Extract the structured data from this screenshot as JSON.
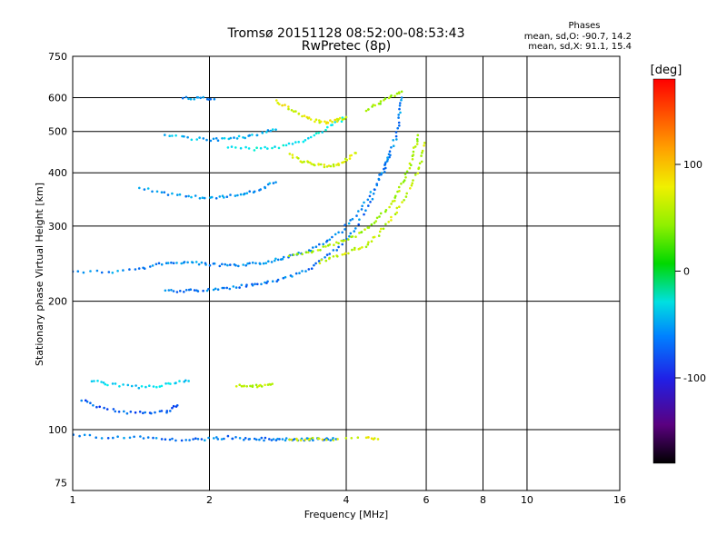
{
  "chart_data": {
    "type": "scatter",
    "title": "Tromsø 20151128 08:52:00-08:53:43",
    "subtitle": "RwPretec (8p)",
    "xlabel": "Frequency [MHz]",
    "ylabel": "Stationary phase Virtual Height [km]",
    "x_scale": "log",
    "y_scale": "log",
    "xlim": [
      1,
      16
    ],
    "ylim": [
      72,
      750
    ],
    "x_ticks": [
      1,
      2,
      4,
      6,
      8,
      10,
      16
    ],
    "y_ticks": [
      75,
      100,
      200,
      300,
      400,
      500,
      600,
      750
    ],
    "grid": true,
    "stats": {
      "heading": "Phases",
      "line_o": "mean, sd,O: -90.7, 14.2",
      "line_x": "mean, sd,X:  91.1, 15.4"
    },
    "colorbar": {
      "label": "[deg]",
      "range": [
        -180,
        180
      ],
      "ticks": [
        100,
        0,
        -100
      ]
    },
    "traces": [
      {
        "phase": -95,
        "points": [
          [
            1.0,
            235
          ],
          [
            1.2,
            234
          ],
          [
            1.4,
            238
          ],
          [
            1.55,
            244
          ],
          [
            1.7,
            247
          ],
          [
            1.85,
            246
          ],
          [
            2.0,
            244
          ],
          [
            2.2,
            242
          ],
          [
            2.4,
            243
          ],
          [
            2.6,
            246
          ],
          [
            2.8,
            250
          ],
          [
            3.0,
            255
          ],
          [
            3.3,
            262
          ],
          [
            3.6,
            274
          ],
          [
            3.9,
            292
          ],
          [
            4.2,
            318
          ],
          [
            4.5,
            352
          ],
          [
            4.8,
            402
          ],
          [
            5.0,
            442
          ],
          [
            5.15,
            490
          ],
          [
            5.25,
            545
          ],
          [
            5.3,
            600
          ]
        ]
      },
      {
        "phase": -100,
        "points": [
          [
            1.6,
            212
          ],
          [
            1.75,
            211
          ],
          [
            1.9,
            212
          ],
          [
            2.1,
            214
          ],
          [
            2.3,
            216
          ],
          [
            2.5,
            218
          ],
          [
            2.7,
            222
          ],
          [
            3.0,
            228
          ],
          [
            3.3,
            238
          ],
          [
            3.6,
            252
          ],
          [
            3.9,
            272
          ],
          [
            4.2,
            298
          ],
          [
            4.5,
            340
          ],
          [
            4.8,
            395
          ],
          [
            5.0,
            440
          ]
        ]
      },
      {
        "phase": 75,
        "points": [
          [
            3.0,
            255
          ],
          [
            3.3,
            260
          ],
          [
            3.6,
            268
          ],
          [
            3.9,
            276
          ],
          [
            4.2,
            285
          ],
          [
            4.5,
            298
          ],
          [
            4.8,
            320
          ],
          [
            5.1,
            345
          ],
          [
            5.3,
            375
          ],
          [
            5.5,
            410
          ],
          [
            5.65,
            450
          ],
          [
            5.75,
            490
          ]
        ]
      },
      {
        "phase": 85,
        "points": [
          [
            3.5,
            247
          ],
          [
            3.8,
            254
          ],
          [
            4.1,
            262
          ],
          [
            4.4,
            270
          ],
          [
            4.7,
            286
          ],
          [
            5.0,
            310
          ],
          [
            5.3,
            340
          ],
          [
            5.6,
            380
          ],
          [
            5.85,
            420
          ],
          [
            5.95,
            470
          ]
        ]
      },
      {
        "phase": -90,
        "points": [
          [
            1.4,
            370
          ],
          [
            1.6,
            358
          ],
          [
            1.8,
            352
          ],
          [
            2.0,
            350
          ],
          [
            2.2,
            352
          ],
          [
            2.4,
            358
          ],
          [
            2.6,
            366
          ],
          [
            2.8,
            380
          ]
        ]
      },
      {
        "phase": -80,
        "points": [
          [
            1.6,
            490
          ],
          [
            1.8,
            482
          ],
          [
            2.0,
            478
          ],
          [
            2.2,
            480
          ],
          [
            2.4,
            486
          ],
          [
            2.6,
            495
          ],
          [
            2.8,
            505
          ]
        ]
      },
      {
        "phase": -60,
        "points": [
          [
            2.2,
            460
          ],
          [
            2.5,
            455
          ],
          [
            2.8,
            458
          ],
          [
            3.1,
            470
          ],
          [
            3.4,
            488
          ],
          [
            3.7,
            515
          ],
          [
            4.0,
            540
          ]
        ]
      },
      {
        "phase": 90,
        "points": [
          [
            3.0,
            440
          ],
          [
            3.2,
            425
          ],
          [
            3.4,
            418
          ],
          [
            3.6,
            415
          ],
          [
            3.8,
            418
          ],
          [
            4.0,
            428
          ],
          [
            4.2,
            445
          ]
        ]
      },
      {
        "phase": 95,
        "points": [
          [
            2.8,
            590
          ],
          [
            3.0,
            565
          ],
          [
            3.2,
            545
          ],
          [
            3.4,
            530
          ],
          [
            3.6,
            525
          ],
          [
            3.8,
            530
          ],
          [
            4.0,
            540
          ]
        ]
      },
      {
        "phase": 70,
        "points": [
          [
            4.4,
            560
          ],
          [
            4.7,
            580
          ],
          [
            5.0,
            600
          ],
          [
            5.3,
            620
          ]
        ]
      },
      {
        "phase": -95,
        "points": [
          [
            1.75,
            600
          ],
          [
            1.9,
            598
          ],
          [
            2.05,
            595
          ]
        ]
      },
      {
        "phase": -70,
        "points": [
          [
            1.1,
            130
          ],
          [
            1.2,
            128
          ],
          [
            1.35,
            126
          ],
          [
            1.5,
            126
          ],
          [
            1.65,
            128
          ],
          [
            1.8,
            130
          ]
        ]
      },
      {
        "phase": -110,
        "points": [
          [
            1.05,
            117
          ],
          [
            1.15,
            113
          ],
          [
            1.3,
            110
          ],
          [
            1.45,
            109
          ],
          [
            1.6,
            110
          ],
          [
            1.7,
            114
          ]
        ]
      },
      {
        "phase": -100,
        "points": [
          [
            1.0,
            97
          ],
          [
            1.2,
            96
          ],
          [
            1.4,
            96
          ],
          [
            1.6,
            95
          ],
          [
            1.8,
            95
          ],
          [
            2.0,
            95
          ],
          [
            2.2,
            96
          ],
          [
            2.4,
            95
          ],
          [
            2.6,
            95
          ],
          [
            2.8,
            95
          ],
          [
            3.0,
            95
          ],
          [
            3.2,
            95
          ],
          [
            3.4,
            95
          ],
          [
            3.6,
            95
          ],
          [
            3.8,
            95
          ]
        ]
      },
      {
        "phase": 80,
        "points": [
          [
            2.3,
            127
          ],
          [
            2.45,
            126
          ],
          [
            2.6,
            127
          ],
          [
            2.75,
            128
          ]
        ]
      },
      {
        "phase": 95,
        "points": [
          [
            3.0,
            95
          ],
          [
            3.3,
            95
          ],
          [
            3.6,
            95
          ],
          [
            4.4,
            96
          ],
          [
            4.7,
            95
          ]
        ]
      }
    ]
  }
}
